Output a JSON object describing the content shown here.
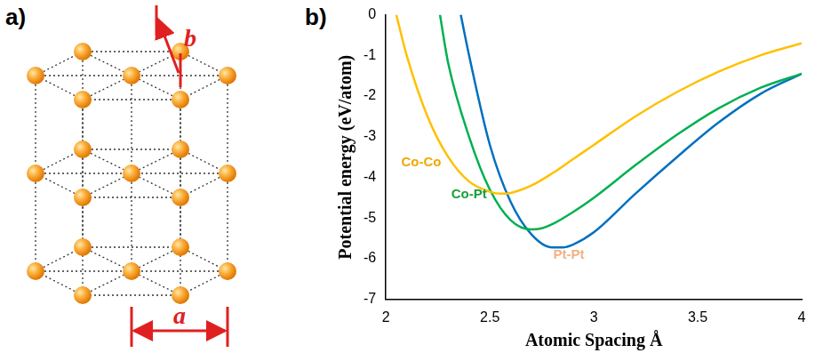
{
  "diagram": {
    "panel_label": "a)",
    "dimension_labels": [
      "a",
      "b"
    ]
  },
  "chart_data": {
    "panel_label": "b)",
    "type": "line",
    "x_label": "Atomic Spacing Å",
    "y_label": "Potential energy (eV/atom)",
    "xlim": [
      2,
      4
    ],
    "xticks": [
      2,
      2.5,
      3,
      3.5,
      4
    ],
    "ylim": [
      -7,
      0
    ],
    "yticks": [
      -7,
      -6,
      -5,
      -4,
      -3,
      -2,
      -1,
      0
    ],
    "grid": false,
    "series": [
      {
        "name": "Co-Co",
        "color": "#ffc000",
        "x": [
          2.05,
          2.1,
          2.2,
          2.3,
          2.4,
          2.5,
          2.55,
          2.6,
          2.7,
          2.8,
          2.9,
          3.0,
          3.2,
          3.4,
          3.6,
          3.8,
          4.0
        ],
        "values": [
          0,
          -1.0,
          -2.5,
          -3.5,
          -4.1,
          -4.35,
          -4.4,
          -4.38,
          -4.2,
          -3.9,
          -3.55,
          -3.2,
          -2.5,
          -1.9,
          -1.4,
          -1.0,
          -0.7
        ]
      },
      {
        "name": "Co-Pt",
        "color": "#00b050",
        "x": [
          2.26,
          2.3,
          2.4,
          2.5,
          2.6,
          2.7,
          2.75,
          2.8,
          2.9,
          3.0,
          3.2,
          3.4,
          3.6,
          3.8,
          4.0
        ],
        "values": [
          0,
          -1.2,
          -3.0,
          -4.3,
          -5.05,
          -5.28,
          -5.25,
          -5.15,
          -4.85,
          -4.5,
          -3.7,
          -2.95,
          -2.3,
          -1.8,
          -1.45
        ]
      },
      {
        "name": "Pt-Pt",
        "color": "#0070c0",
        "x": [
          2.36,
          2.4,
          2.5,
          2.6,
          2.7,
          2.8,
          2.85,
          2.9,
          3.0,
          3.2,
          3.4,
          3.6,
          3.8,
          4.0
        ],
        "values": [
          0,
          -1.0,
          -3.2,
          -4.6,
          -5.4,
          -5.72,
          -5.72,
          -5.65,
          -5.35,
          -4.4,
          -3.5,
          -2.65,
          -1.95,
          -1.45
        ]
      }
    ],
    "annotations": [
      {
        "text": "Co-Co",
        "x": 2.17,
        "y": -3.64,
        "color": "#f0a800"
      },
      {
        "text": "Co-Pt",
        "x": 2.4,
        "y": -4.42,
        "color": "#1aa03a"
      },
      {
        "text": "Pt-Pt",
        "x": 2.88,
        "y": -5.91,
        "color": "#f4b183"
      }
    ]
  }
}
